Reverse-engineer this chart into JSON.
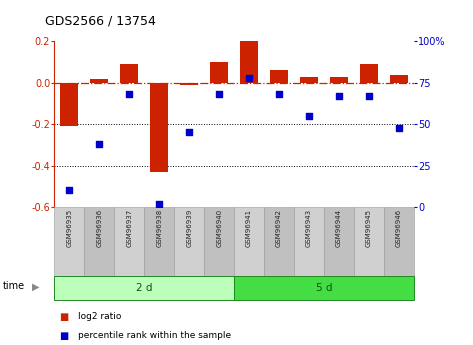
{
  "title": "GDS2566 / 13754",
  "samples": [
    "GSM96935",
    "GSM96936",
    "GSM96937",
    "GSM96938",
    "GSM96939",
    "GSM96940",
    "GSM96941",
    "GSM96942",
    "GSM96943",
    "GSM96944",
    "GSM96945",
    "GSM96946"
  ],
  "log2_ratio": [
    -0.21,
    0.02,
    0.09,
    -0.43,
    -0.01,
    0.1,
    0.2,
    0.06,
    0.03,
    0.03,
    0.09,
    0.04
  ],
  "percentile_rank": [
    10,
    38,
    68,
    2,
    45,
    68,
    78,
    68,
    55,
    67,
    67,
    48
  ],
  "groups": [
    {
      "label": "2 d",
      "start": 0,
      "end": 6,
      "color": "#bbffbb"
    },
    {
      "label": "5 d",
      "start": 6,
      "end": 12,
      "color": "#44dd44"
    }
  ],
  "bar_color": "#cc2200",
  "dot_color": "#0000cc",
  "ylim_left": [
    -0.6,
    0.2
  ],
  "ylim_right": [
    0,
    100
  ],
  "yticks_left": [
    -0.6,
    -0.4,
    -0.2,
    0.0,
    0.2
  ],
  "yticks_right": [
    0,
    25,
    50,
    75,
    100
  ],
  "ytick_labels_right": [
    "0",
    "25",
    "50",
    "75",
    "100%"
  ],
  "hline_y": 0,
  "dotted_lines": [
    -0.2,
    -0.4
  ],
  "legend_items": [
    {
      "label": "log2 ratio",
      "color": "#cc2200"
    },
    {
      "label": "percentile rank within the sample",
      "color": "#0000cc"
    }
  ],
  "time_label": "time",
  "background_color": "#ffffff",
  "tick_label_color_left": "#cc2200",
  "tick_label_color_right": "#0000cc"
}
